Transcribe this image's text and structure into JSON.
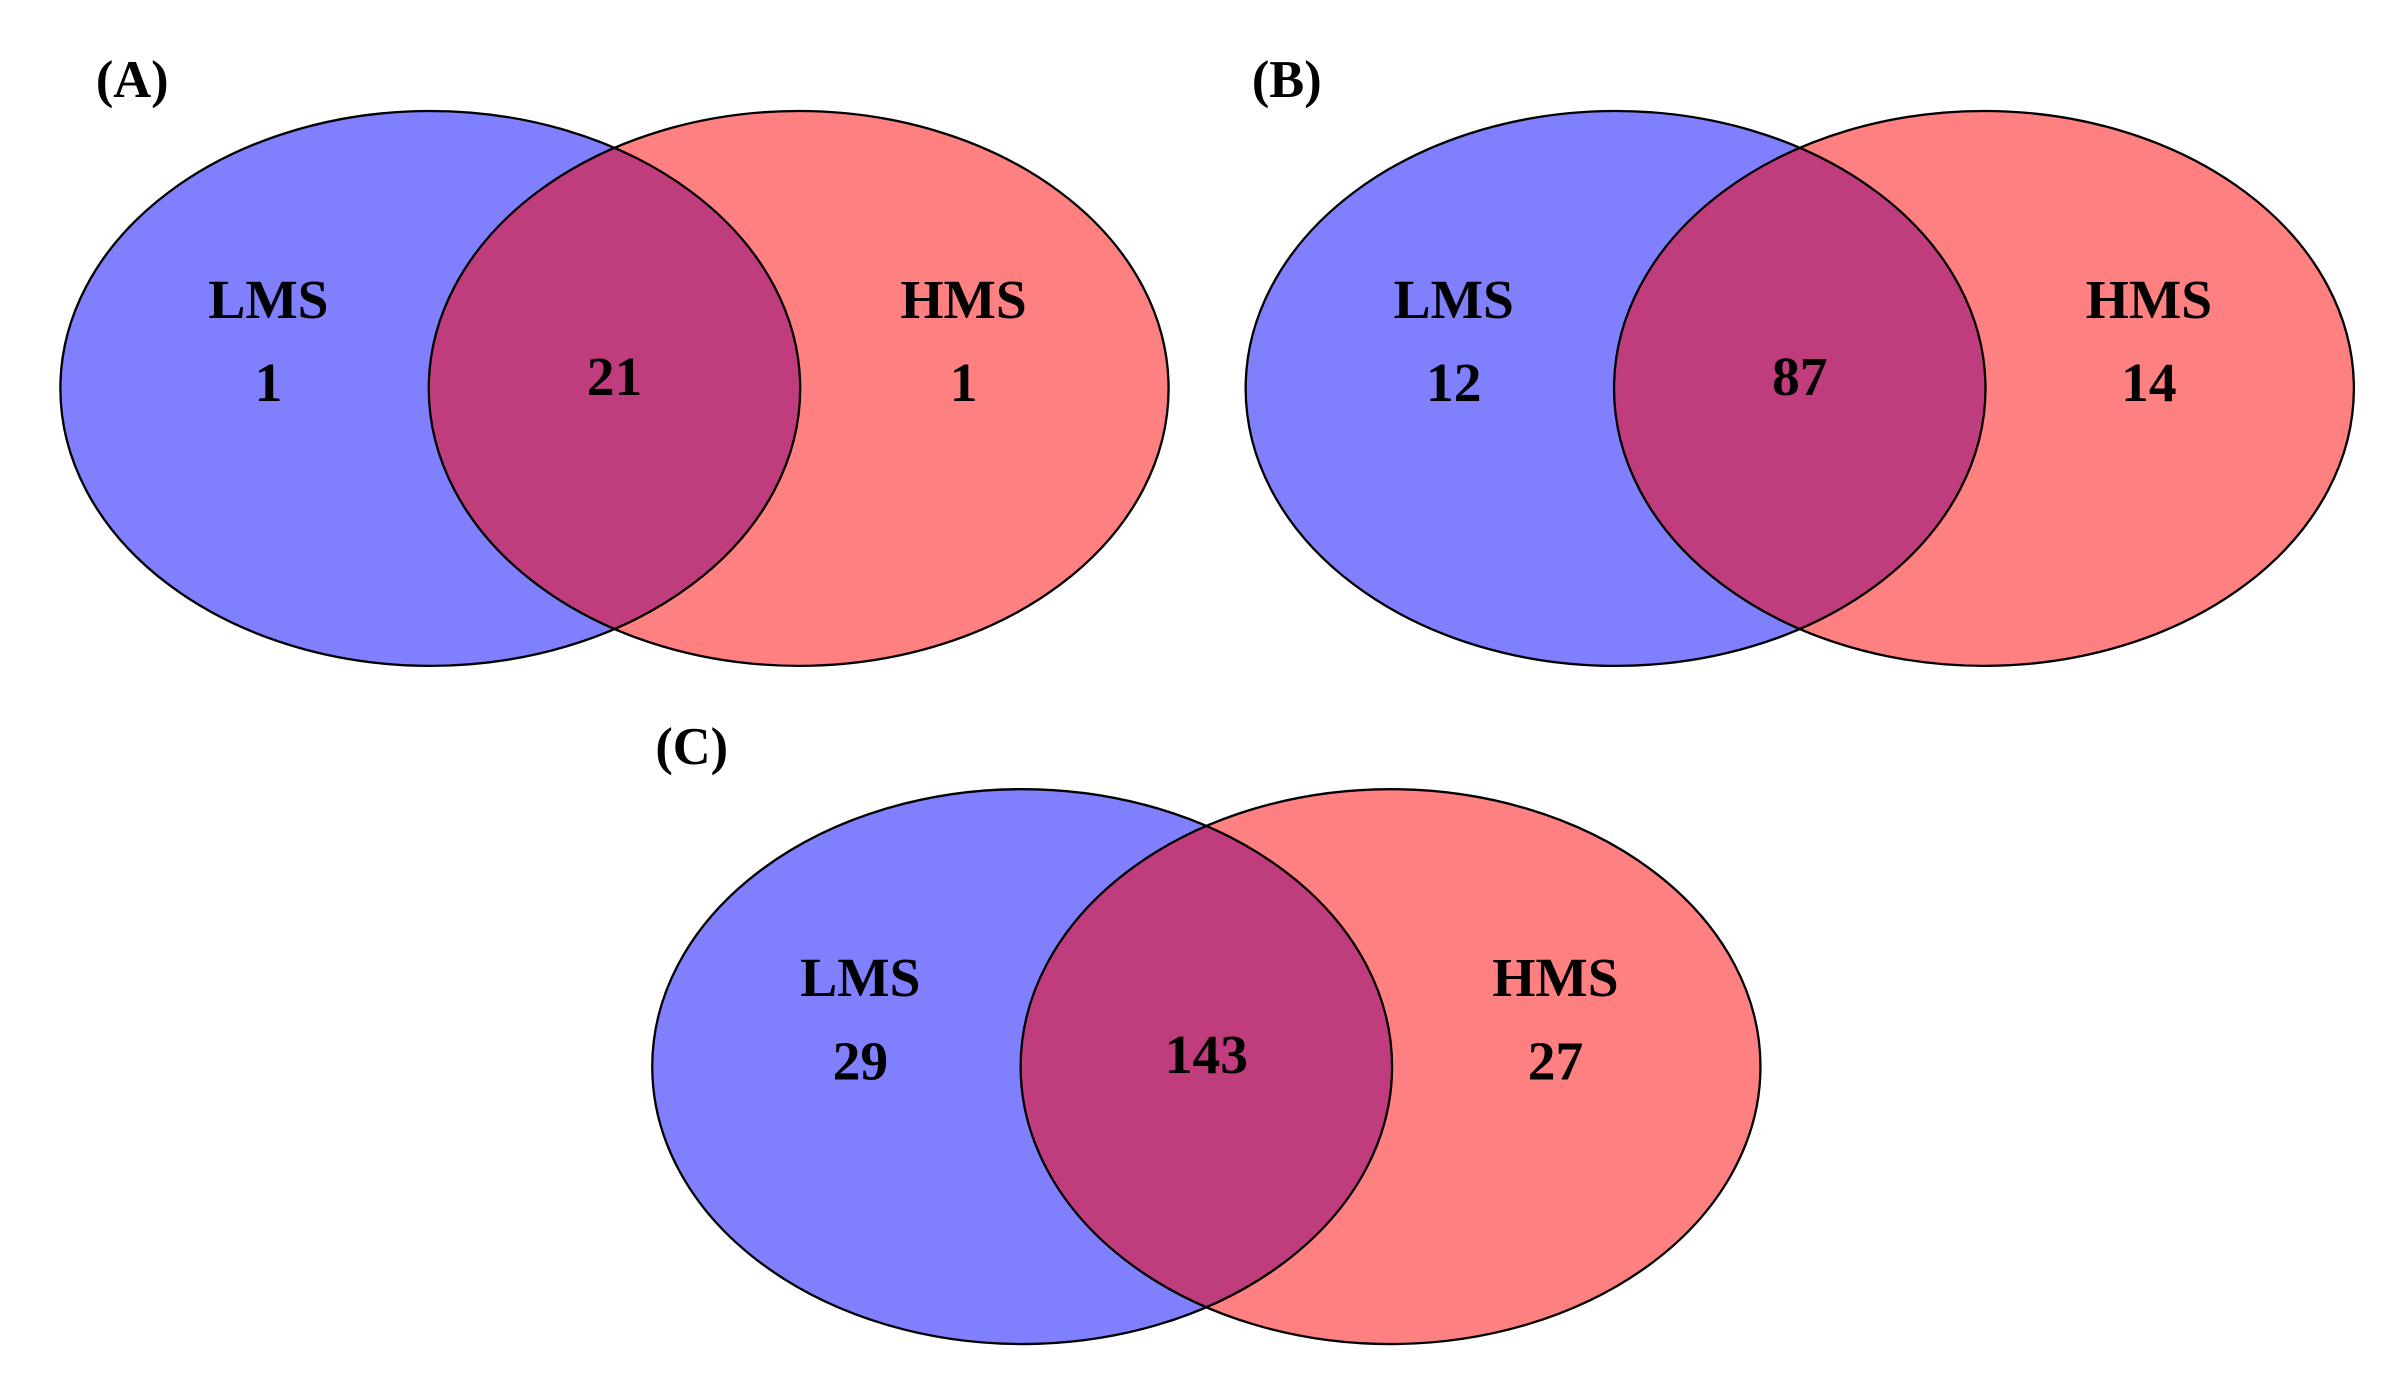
{
  "chart_data": [
    {
      "type": "venn",
      "title": "(A)",
      "sets": [
        {
          "name": "LMS",
          "color": "#8080ff",
          "value": 1
        },
        {
          "name": "HMS",
          "color": "#ff8080",
          "value": 1
        }
      ],
      "overlap": {
        "value": 21,
        "color": "#bf3c7d"
      }
    },
    {
      "type": "venn",
      "title": "(B)",
      "sets": [
        {
          "name": "LMS",
          "color": "#8080ff",
          "value": 12
        },
        {
          "name": "HMS",
          "color": "#ff8080",
          "value": 14
        }
      ],
      "overlap": {
        "value": 87,
        "color": "#bf3c7d"
      }
    },
    {
      "type": "venn",
      "title": "(C)",
      "sets": [
        {
          "name": "LMS",
          "color": "#8080ff",
          "value": 29
        },
        {
          "name": "HMS",
          "color": "#ff8080",
          "value": 27
        }
      ],
      "overlap": {
        "value": 143,
        "color": "#bf3c7d"
      }
    }
  ]
}
